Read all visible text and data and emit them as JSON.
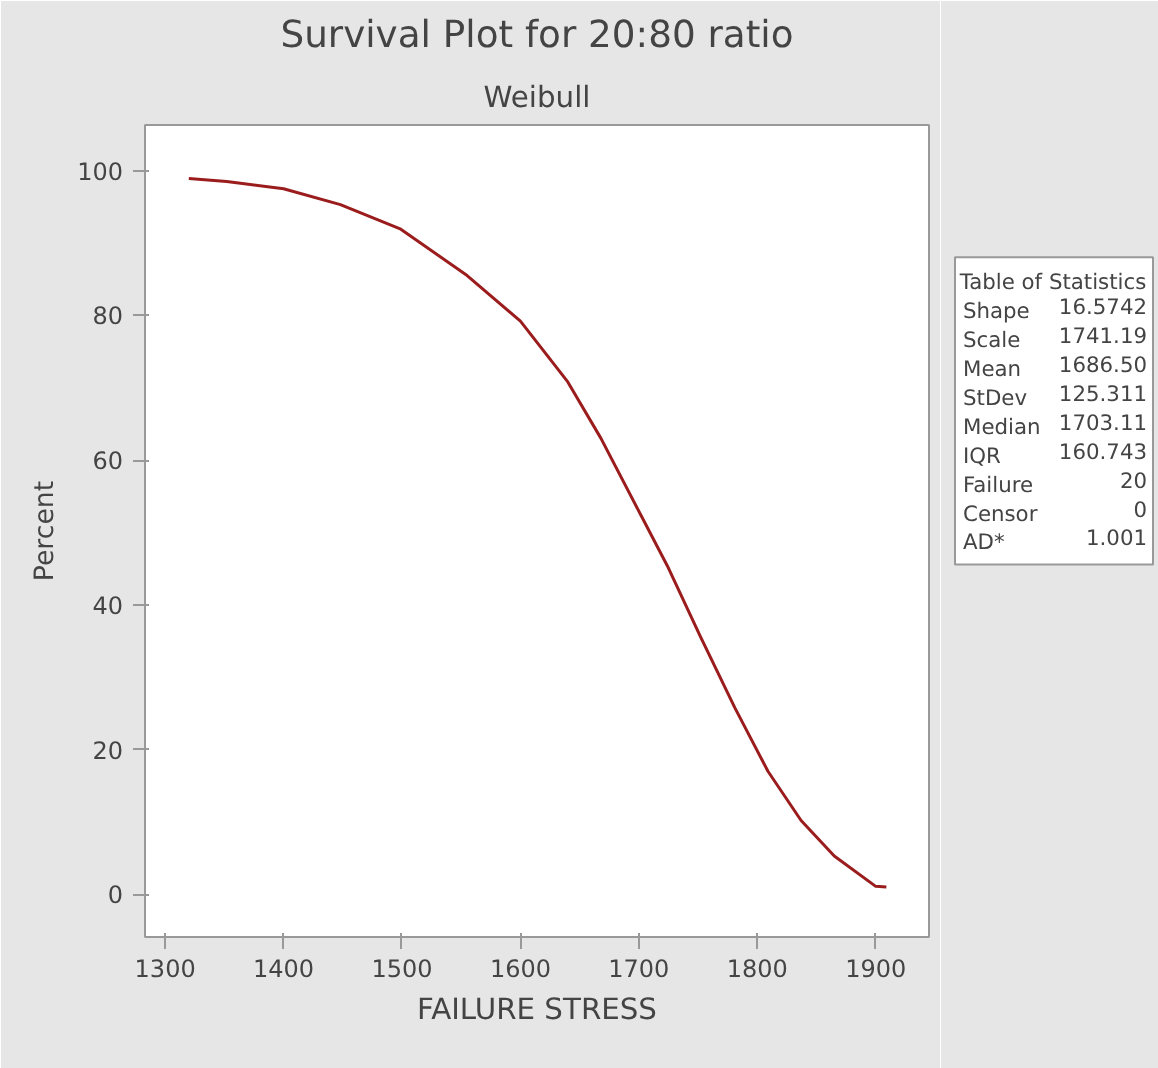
{
  "chart_data": {
    "type": "line",
    "title": "Survival Plot for 20:80 ratio",
    "subtitle": "Weibull",
    "xlabel": "FAILURE STRESS",
    "ylabel": "Percent",
    "series": [
      {
        "color": "#9b1c1c",
        "x": [
          1320,
          1352,
          1400,
          1448,
          1499,
          1555,
          1600,
          1640,
          1668,
          1702,
          1724,
          1752,
          1781,
          1809,
          1837,
          1865,
          1900,
          1909
        ],
        "values": [
          98.9,
          98.5,
          97.5,
          95.3,
          91.9,
          85.5,
          79.2,
          70.8,
          63,
          52.3,
          45.4,
          35.6,
          25.8,
          17,
          10.2,
          5.3,
          1.1,
          1.0
        ]
      }
    ],
    "xlim": [
      1283,
      1945
    ],
    "ylim": [
      -5.9,
      106.3
    ],
    "xticks": [
      1300,
      1400,
      1500,
      1600,
      1700,
      1800,
      1900
    ],
    "yticks": [
      0,
      20,
      40,
      60,
      80,
      100
    ],
    "grid": false,
    "line_style": "solid",
    "annotations": [
      "Table of Statistics",
      "Shape 16.5742",
      "Scale 1741.19",
      "Mean 1686.50",
      "StDev 125.311",
      "Median 1703.11",
      "IQR 160.743",
      "Failure 20",
      "Censor 0",
      "AD* 1.001"
    ]
  }
}
